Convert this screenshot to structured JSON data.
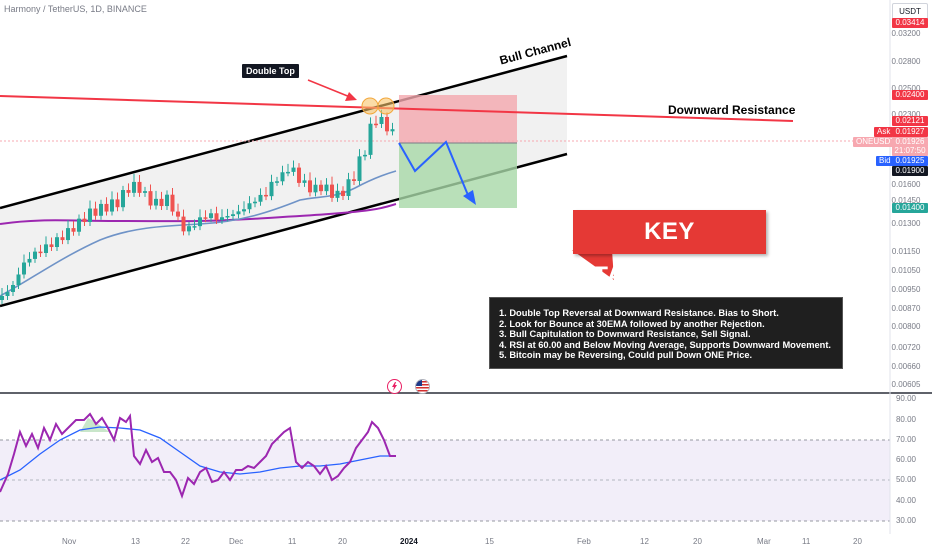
{
  "header": {
    "symbol_title": "Harmony / TetherUS, 1D, BINANCE",
    "currency_button": "USDT"
  },
  "price_axis": {
    "labels": [
      "0.03200",
      "0.02800",
      "0.02500",
      "0.02300",
      "0.01800",
      "0.01600",
      "0.01450",
      "0.01300",
      "0.01150",
      "0.01050",
      "0.00950",
      "0.00870",
      "0.00800",
      "0.00720",
      "0.00660",
      "0.00605"
    ]
  },
  "price_tags": {
    "top": "0.03414",
    "resistance": "0.02400",
    "level": "0.02121",
    "ask_label": "Ask",
    "ask": "0.01927",
    "symbol_label": "ONEUSDT",
    "last": "0.01926",
    "countdown": "21:07:50",
    "bid_label": "Bid",
    "bid": "0.01925",
    "support": "0.01900",
    "target": "0.01400"
  },
  "rsi_axis": {
    "labels": [
      "90.00",
      "80.00",
      "70.00",
      "60.00",
      "50.00",
      "40.00",
      "30.00"
    ]
  },
  "time_axis": {
    "labels": [
      "Nov",
      "13",
      "22",
      "Dec",
      "11",
      "20",
      "2024",
      "15",
      "Feb",
      "12",
      "20",
      "Mar",
      "11",
      "20"
    ]
  },
  "annotations": {
    "double_top": "Double Top",
    "bull_channel": "Bull Channel",
    "downward_resistance": "Downward Resistance",
    "key_takeaways": "KEY TAKEAWAYS",
    "takeaways": [
      "1. Double Top Reversal at Downward Resistance. Bias to Short.",
      "2. Look for Bounce at 30EMA followed by another Rejection.",
      "3. Bull Capitulation to Downward Resistance, Sell Signal.",
      "4. RSI at 60.00 and Below Moving Average, Supports Downward Movement.",
      "5. Bitcoin may be Reversing, Could pull Down ONE Price."
    ]
  },
  "colors": {
    "candle_up": "#26a69a",
    "candle_down": "#ef5350",
    "ema": "#6f93c7",
    "ma_long": "#9c27b0",
    "rsi": "#9c27b0",
    "rsi_ma": "#2962ff",
    "resistance": "#f23645",
    "banner": "#e53935"
  },
  "icons": {
    "flash": "lightning-icon",
    "flag": "us-flag-icon"
  }
}
